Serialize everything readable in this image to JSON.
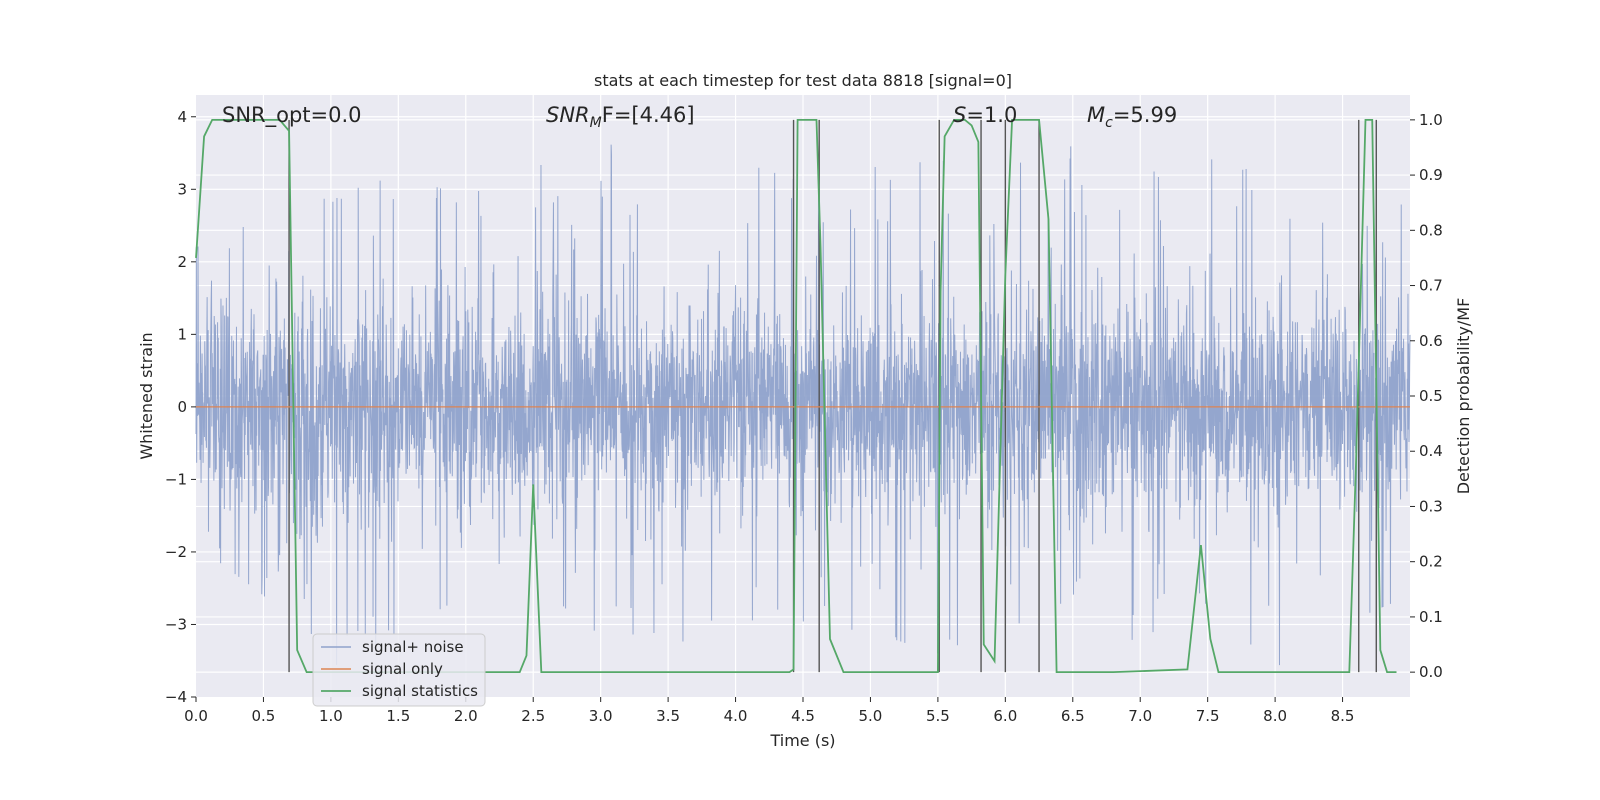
{
  "chart_data": {
    "type": "line",
    "title": "stats at each timestep for test data 8818 [signal=0]",
    "xlabel": "Time (s)",
    "ylabel": "Whitened strain",
    "y2label": "Detection probability/MF",
    "xlim": [
      0.0,
      9.0
    ],
    "ylim": [
      -4,
      4.3
    ],
    "y2lim": [
      -0.045,
      1.045
    ],
    "xticks": [
      "0.0",
      "0.5",
      "1.0",
      "1.5",
      "2.0",
      "2.5",
      "3.0",
      "3.5",
      "4.0",
      "4.5",
      "5.0",
      "5.5",
      "6.0",
      "6.5",
      "7.0",
      "7.5",
      "8.0",
      "8.5"
    ],
    "yticks": [
      "4",
      "3",
      "2",
      "1",
      "0",
      "−1",
      "−2",
      "−3",
      "−4"
    ],
    "y2ticks": [
      "1.0",
      "0.9",
      "0.8",
      "0.7",
      "0.6",
      "0.5",
      "0.4",
      "0.3",
      "0.2",
      "0.1",
      "0.0"
    ],
    "grid": true,
    "legend_position": "lower-left",
    "annotations": {
      "snr_opt": "SNR_opt=0.0",
      "snr_mf_sym": "SNR",
      "snr_mf_sub": "M",
      "snr_mf_rest": "F=[4.46]",
      "s_sym": "S",
      "s_rest": "=1.0",
      "mc_sym": "M",
      "mc_sub": "c",
      "mc_rest": "=5.99"
    },
    "series": [
      {
        "name": "signal+ noise",
        "color": "#8fa2cb",
        "note_amplitude_envelope": [
          [
            0.0,
            2.2,
            -1.9
          ],
          [
            0.5,
            2.6,
            -2.6
          ],
          [
            1.0,
            2.9,
            -3.6
          ],
          [
            1.5,
            3.2,
            -3.1
          ],
          [
            2.0,
            2.9,
            -2.6
          ],
          [
            2.5,
            3.3,
            -2.3
          ],
          [
            3.0,
            3.6,
            -3.3
          ],
          [
            3.5,
            3.7,
            -3.3
          ],
          [
            4.0,
            3.4,
            -3.0
          ],
          [
            4.5,
            3.1,
            -3.0
          ],
          [
            5.0,
            3.3,
            -3.1
          ],
          [
            5.5,
            3.4,
            -3.4
          ],
          [
            6.0,
            3.3,
            -3.4
          ],
          [
            6.5,
            3.6,
            -3.3
          ],
          [
            7.0,
            3.8,
            -3.2
          ],
          [
            7.5,
            3.4,
            -2.7
          ],
          [
            8.0,
            3.6,
            -3.6
          ],
          [
            8.5,
            3.4,
            -3.0
          ],
          [
            9.0,
            2.7,
            -2.6
          ]
        ]
      },
      {
        "name": "signal only",
        "color": "#dd8452",
        "x": [
          0.0,
          9.0
        ],
        "y": [
          0.0,
          0.0
        ]
      },
      {
        "name": "signal statistics",
        "color": "#55a868",
        "axis": "right",
        "x": [
          0.0,
          0.06,
          0.12,
          0.5,
          0.62,
          0.69,
          0.75,
          0.82,
          0.9,
          2.4,
          2.45,
          2.5,
          2.56,
          4.4,
          4.43,
          4.46,
          4.6,
          4.63,
          4.7,
          4.8,
          5.0,
          5.5,
          5.52,
          5.55,
          5.62,
          5.7,
          5.75,
          5.8,
          5.84,
          5.92,
          6.0,
          6.05,
          6.12,
          6.25,
          6.32,
          6.38,
          6.5,
          6.7,
          6.8,
          7.35,
          7.45,
          7.52,
          7.58,
          8.55,
          8.6,
          8.67,
          8.72,
          8.78,
          8.83,
          8.9
        ],
        "y": [
          0.75,
          0.97,
          1.0,
          1.0,
          1.0,
          0.98,
          0.04,
          0.0,
          0.0,
          0.0,
          0.03,
          0.34,
          0.0,
          0.0,
          0.005,
          1.0,
          1.0,
          0.77,
          0.06,
          0.0,
          0.0,
          0.0,
          0.69,
          0.97,
          1.0,
          1.0,
          0.99,
          0.96,
          0.05,
          0.02,
          0.72,
          1.0,
          1.0,
          1.0,
          0.82,
          0.0,
          0.0,
          0.0,
          0.0,
          0.005,
          0.23,
          0.06,
          0.0,
          0.0,
          0.38,
          1.0,
          1.0,
          0.04,
          0.0,
          0.0
        ]
      }
    ],
    "vertical_markers": [
      0.69,
      4.43,
      4.62,
      5.51,
      5.82,
      6.0,
      6.25,
      8.62,
      8.75
    ]
  }
}
